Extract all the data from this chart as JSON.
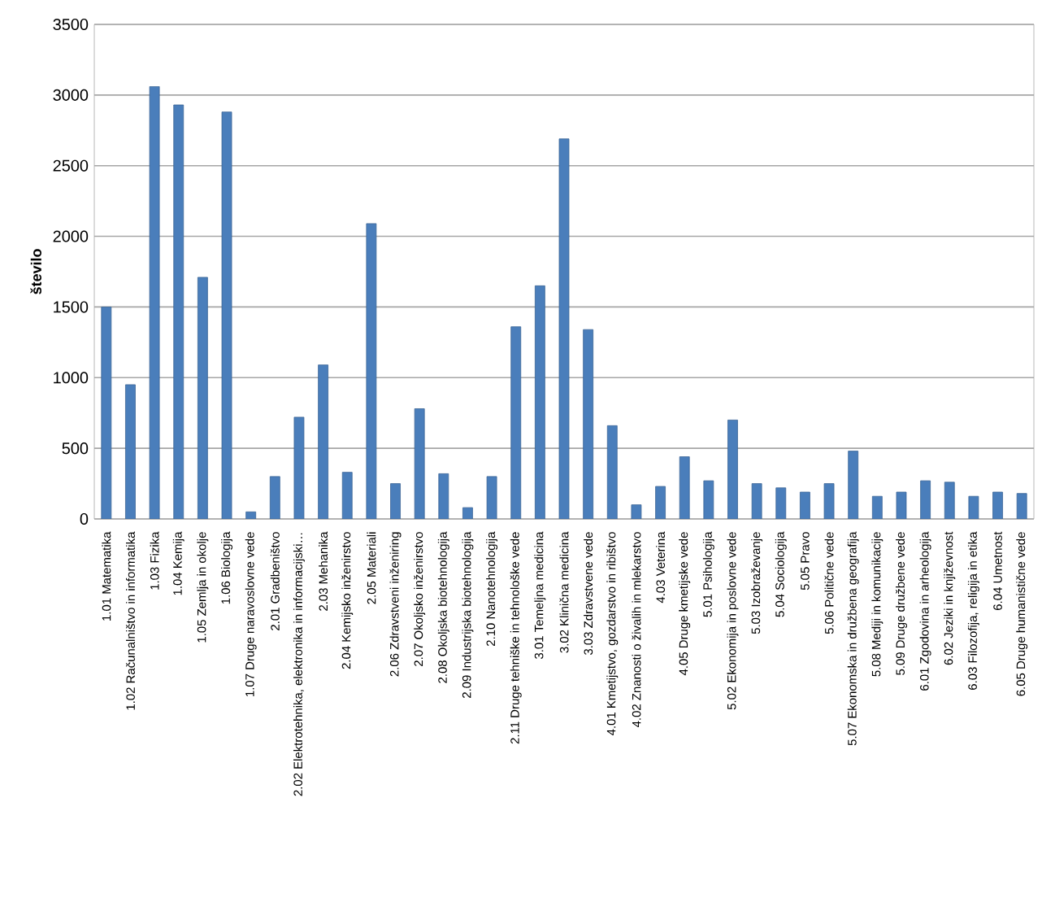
{
  "chart_data": {
    "type": "bar",
    "ylabel": "število",
    "categories": [
      "1.01 Matematika",
      "1.02 Računalništvo in informatika",
      "1.03 Fizika",
      "1.04 Kemija",
      "1.05 Zemlja in okolje",
      "1.06 Biologija",
      "1.07 Druge naravoslovne vede",
      "2.01 Gradbeništvo",
      "2.02 Elektrotehnika, elektronika in informacijski…",
      "2.03 Mehanika",
      "2.04 Kemijsko inženirstvo",
      "2.05 Materiali",
      "2.06 Zdravstveni inženiring",
      "2.07 Okoljsko inženirstvo",
      "2.08 Okoljska biotehnologija",
      "2.09 Industrijska biotehnologija",
      "2.10 Nanotehnologija",
      "2.11 Druge tehniške in tehnološke vede",
      "3.01 Temeljna medicina",
      "3.02 Klinična medicina",
      "3.03 Zdravstvene vede",
      "4.01 Kmetijstvo, gozdarstvo in ribištvo",
      "4.02 Znanosti o živalih in mlekarstvo",
      "4.03 Veterina",
      "4.05 Druge kmetijske vede",
      "5.01 Psihologija",
      "5.02 Ekonomija in poslovne vede",
      "5.03 Izobraževanje",
      "5.04 Sociologija",
      "5.05 Pravo",
      "5.06 Politične vede",
      "5.07 Ekonomska in družbena geografija",
      "5.08 Mediji in komunikacije",
      "5.09 Druge družbene vede",
      "6.01 Zgodovina in arheologija",
      "6.02 Jeziki in književnost",
      "6.03 Filozofija, religija in etika",
      "6.04 Umetnost",
      "6.05 Druge humanistične vede"
    ],
    "values": [
      1500,
      950,
      3060,
      2930,
      1710,
      2880,
      50,
      300,
      720,
      1090,
      330,
      2090,
      250,
      780,
      320,
      80,
      300,
      1360,
      1650,
      2690,
      1340,
      660,
      100,
      230,
      440,
      270,
      700,
      250,
      220,
      190,
      250,
      480,
      160,
      190,
      270,
      260,
      160,
      190,
      180
    ],
    "color": "#4a7ebb",
    "ylim": [
      0,
      3500
    ],
    "yticks": [
      0,
      500,
      1000,
      1500,
      2000,
      2500,
      3000,
      3500
    ],
    "grid": "y"
  }
}
